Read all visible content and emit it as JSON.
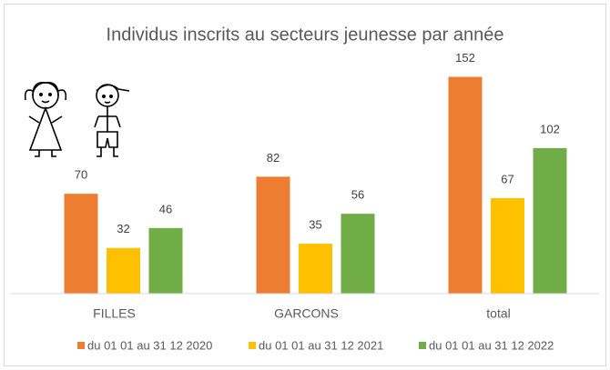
{
  "chart_data": {
    "type": "bar",
    "title": "Individus inscrits au secteurs jeunesse par année",
    "categories": [
      "FILLES",
      "GARCONS",
      "total"
    ],
    "series": [
      {
        "name": "du 01 01 au 31 12 2020",
        "color": "#ed7d31",
        "values": [
          70,
          82,
          152
        ]
      },
      {
        "name": "du 01 01 au 31 12 2021",
        "color": "#ffc000",
        "values": [
          32,
          35,
          67
        ]
      },
      {
        "name": "du 01 01 au 31 12 2022",
        "color": "#70ad47",
        "values": [
          46,
          56,
          102
        ]
      }
    ],
    "ylim": [
      0,
      160
    ],
    "grid": false,
    "legend": "bottom"
  }
}
